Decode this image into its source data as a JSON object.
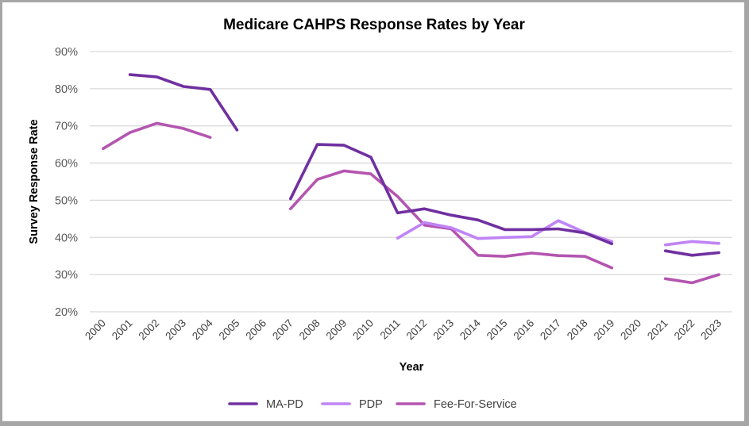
{
  "chart_data": {
    "type": "line",
    "title": "Medicare CAHPS Response Rates by Year",
    "xlabel": "Year",
    "ylabel": "Survey Response Rate",
    "categories": [
      "2000",
      "2001",
      "2002",
      "2003",
      "2004",
      "2005",
      "2006",
      "2007",
      "2008",
      "2009",
      "2010",
      "2011",
      "2012",
      "2013",
      "2014",
      "2015",
      "2016",
      "2017",
      "2018",
      "2019",
      "2020",
      "2021",
      "2022",
      "2023"
    ],
    "ylim": [
      20,
      90
    ],
    "yticks": [
      20,
      30,
      40,
      50,
      60,
      70,
      80,
      90
    ],
    "ytick_labels": [
      "20%",
      "30%",
      "40%",
      "50%",
      "60%",
      "70%",
      "80%",
      "90%"
    ],
    "grid": true,
    "legend_position": "bottom",
    "series": [
      {
        "name": "MA-PD",
        "color": "#7030a0",
        "values": [
          null,
          83.8,
          83.2,
          80.6,
          79.8,
          68.9,
          null,
          50.4,
          65.0,
          64.8,
          61.6,
          46.6,
          47.7,
          46.0,
          44.7,
          42.1,
          42.1,
          42.3,
          41.2,
          38.3,
          null,
          36.4,
          35.2,
          35.9
        ]
      },
      {
        "name": "PDP",
        "color": "#c084f5",
        "values": [
          null,
          null,
          null,
          null,
          null,
          null,
          null,
          null,
          null,
          null,
          null,
          39.8,
          44.0,
          42.6,
          39.7,
          40.0,
          40.2,
          44.5,
          41.3,
          38.9,
          null,
          38.0,
          38.9,
          38.4
        ]
      },
      {
        "name": "Fee-For-Service",
        "color": "#b455b0",
        "values": [
          63.9,
          68.2,
          70.7,
          69.3,
          66.9,
          null,
          null,
          47.7,
          55.6,
          57.9,
          57.1,
          51.0,
          43.3,
          42.3,
          35.2,
          34.9,
          35.8,
          35.1,
          34.9,
          31.8,
          null,
          28.9,
          27.8,
          30.0
        ]
      }
    ]
  }
}
